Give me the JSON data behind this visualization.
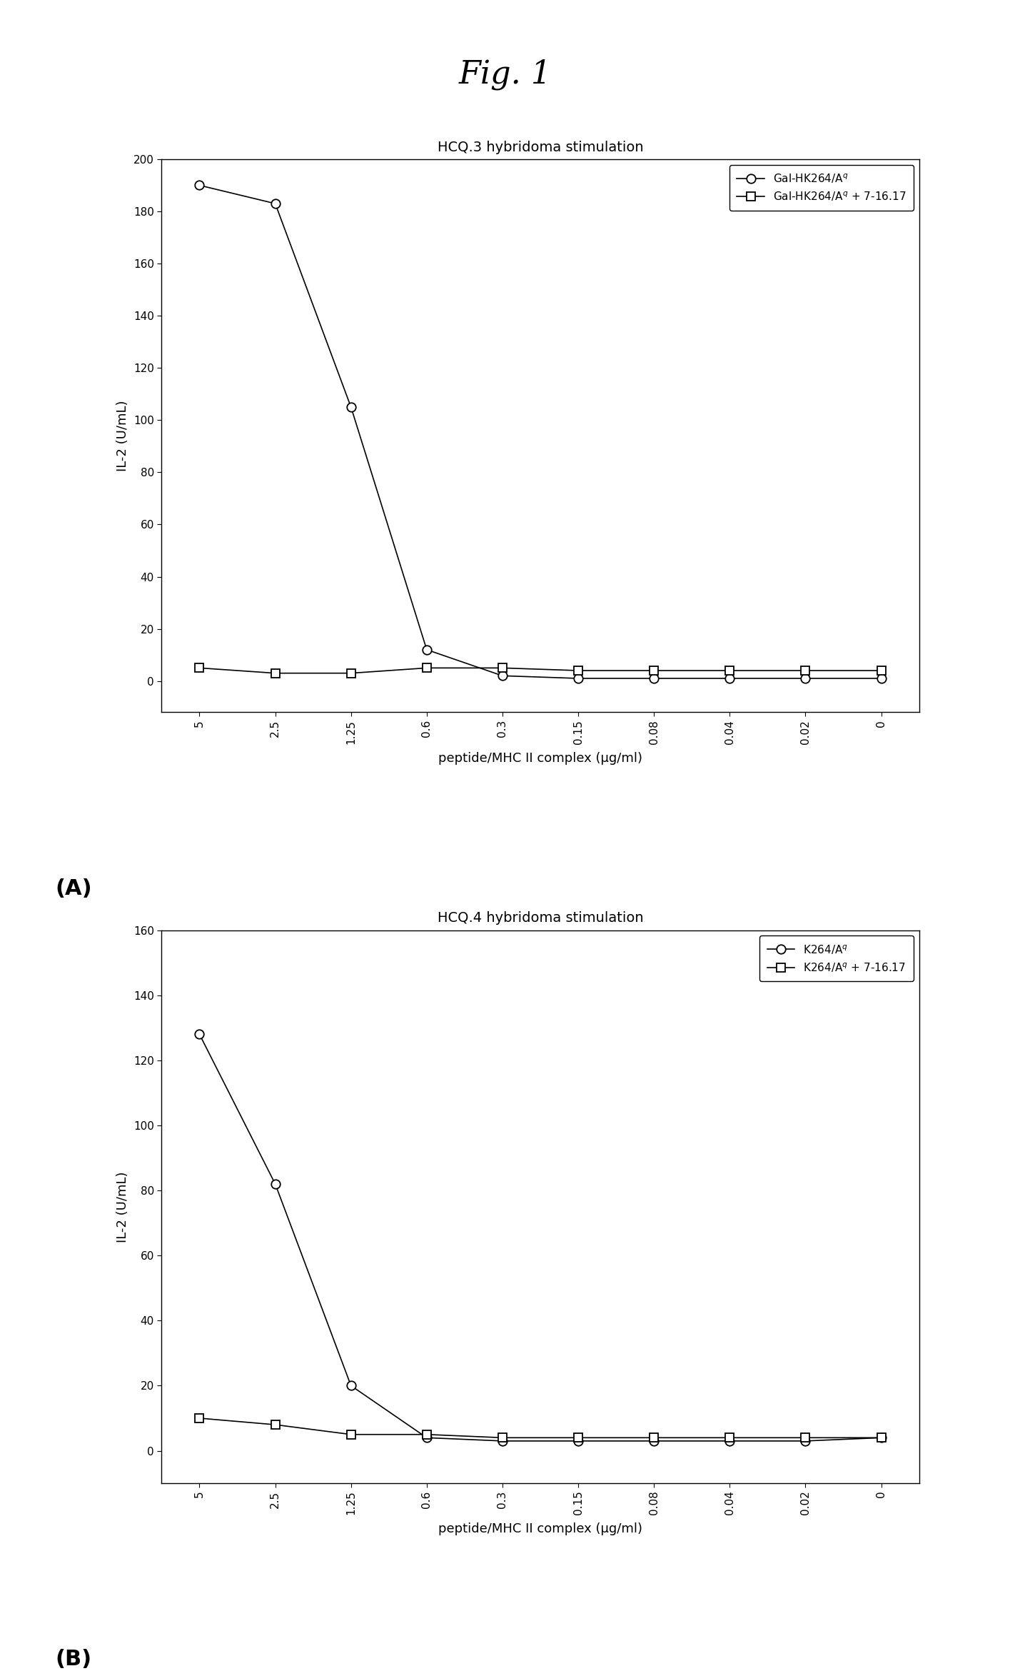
{
  "fig_title": "Fig. 1",
  "fig_title_fontsize": 32,
  "fig_title_style": "italic",
  "panel_A": {
    "title": "HCQ.3 hybridoma stimulation",
    "title_fontsize": 14,
    "ylabel": "IL-2 (U/mL)",
    "ylabel_fontsize": 13,
    "xlabel": "peptide/MHC II complex (μg/ml)",
    "xlabel_fontsize": 13,
    "ylim": [
      -12,
      200
    ],
    "yticks": [
      0,
      20,
      40,
      60,
      80,
      100,
      120,
      140,
      160,
      180,
      200
    ],
    "x_labels": [
      "5",
      "2.5",
      "1.25",
      "0.6",
      "0.3",
      "0.15",
      "0.08",
      "0.04",
      "0.02",
      "0"
    ],
    "series1_label": "Gal-HK264/A$^q$",
    "series2_label": "Gal-HK264/A$^q$ + 7-16.17",
    "series1_y": [
      190,
      183,
      105,
      12,
      2,
      1,
      1,
      1,
      1,
      1
    ],
    "series2_y": [
      5,
      3,
      3,
      5,
      5,
      4,
      4,
      4,
      4,
      4
    ],
    "panel_label": "(A)"
  },
  "panel_B": {
    "title": "HCQ.4 hybridoma stimulation",
    "title_fontsize": 14,
    "ylabel": "IL-2 (U/mL)",
    "ylabel_fontsize": 13,
    "xlabel": "peptide/MHC II complex (μg/ml)",
    "xlabel_fontsize": 13,
    "ylim": [
      -10,
      160
    ],
    "yticks": [
      0,
      20,
      40,
      60,
      80,
      100,
      120,
      140,
      160
    ],
    "x_labels": [
      "5",
      "2.5",
      "1.25",
      "0.6",
      "0.3",
      "0.15",
      "0.08",
      "0.04",
      "0.02",
      "0"
    ],
    "series1_label": "K264/A$^q$",
    "series2_label": "K264/A$^q$ + 7-16.17",
    "series1_y": [
      128,
      82,
      20,
      4,
      3,
      3,
      3,
      3,
      3,
      4
    ],
    "series2_y": [
      10,
      8,
      5,
      5,
      4,
      4,
      4,
      4,
      4,
      4
    ],
    "panel_label": "(B)"
  },
  "line1_color": "black",
  "line2_color": "black",
  "marker1": "o",
  "marker2": "s",
  "marker_size": 9,
  "line_width": 1.2,
  "background_color": "white",
  "legend_fontsize": 11
}
